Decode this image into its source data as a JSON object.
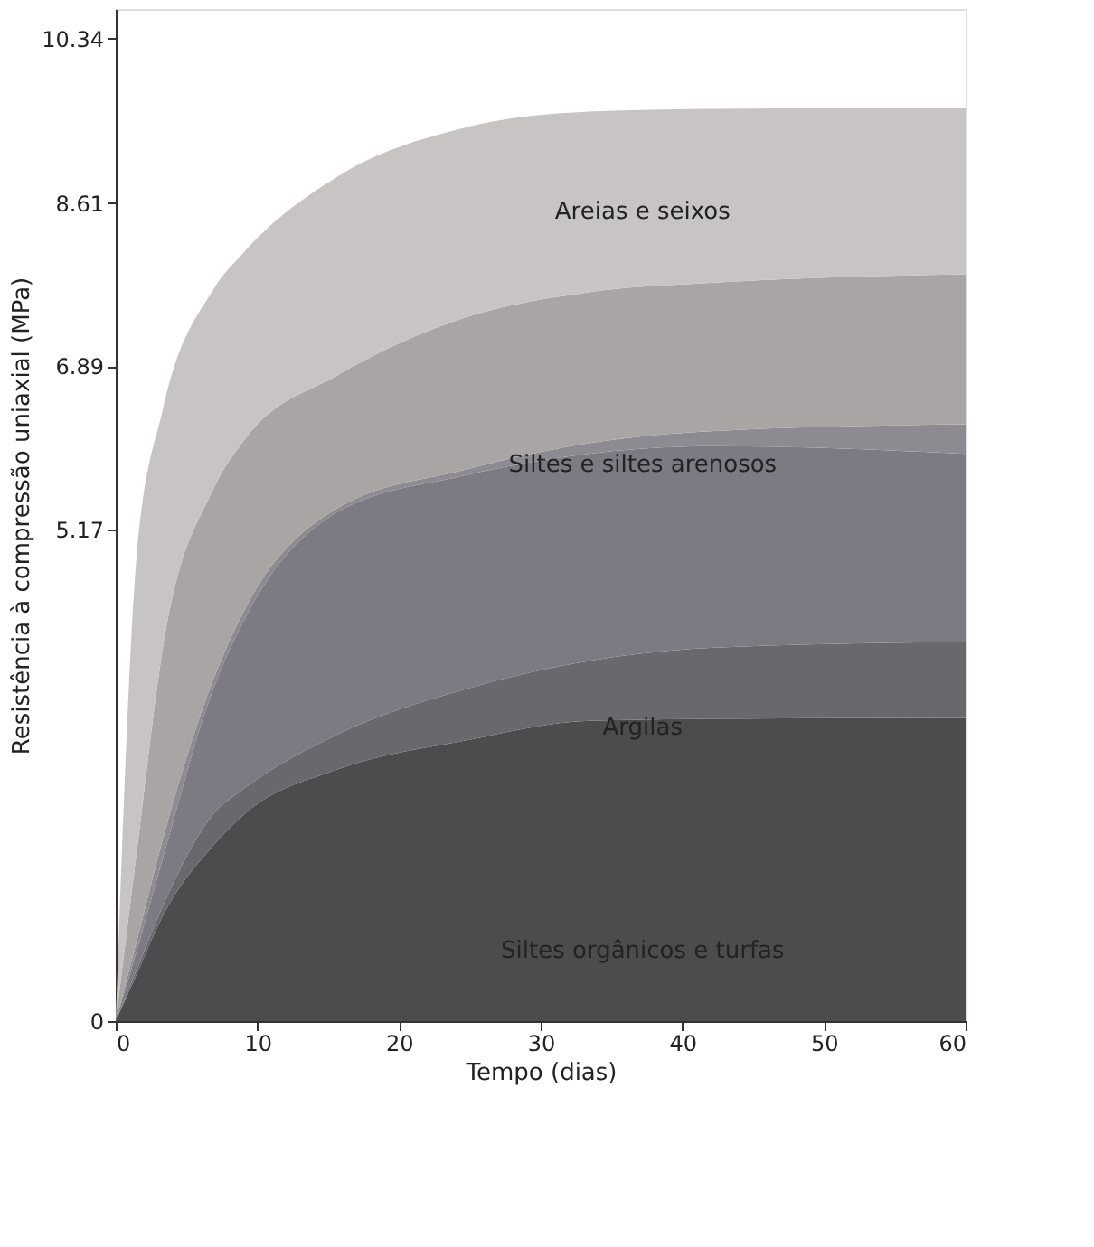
{
  "chart_data": {
    "type": "area",
    "stacked": true,
    "xlabel": "Tempo (dias)",
    "ylabel": "Resistência à compressão uniaxial (MPa)",
    "xlim": [
      0,
      60
    ],
    "xticks": [
      0,
      10,
      20,
      30,
      40,
      50,
      60
    ],
    "ylim": [
      0,
      10.65
    ],
    "yticks": [
      0,
      5.17,
      6.89,
      8.61,
      10.34
    ],
    "grid": false,
    "x": [
      0,
      1.5,
      3.3,
      6.9,
      9.1,
      15.7,
      24.6,
      33.4,
      42.3,
      60
    ],
    "series": [
      {
        "color": "#4e4b4f",
        "values": [
          0,
          0.5,
          1.1,
          1.85,
          2.18,
          2.65,
          2.95,
          3.16,
          3.18,
          3.19
        ]
      },
      {
        "color": "#6a676d",
        "values": [
          0,
          0.05,
          0.1,
          0.33,
          0.27,
          0.37,
          0.54,
          0.63,
          0.75,
          0.8
        ]
      },
      {
        "color": "#7d7a84",
        "values": [
          0,
          0.2,
          0.5,
          1.32,
          1.78,
          2.34,
          2.25,
          2.18,
          2.12,
          1.98
        ]
      },
      {
        "color": "#8e8a91",
        "values": [
          0,
          0.1,
          0.2,
          0.1,
          0.1,
          0.04,
          0.06,
          0.11,
          0.16,
          0.31
        ]
      },
      {
        "color": "#aaa5a5",
        "values": [
          0,
          0.95,
          2.0,
          2.0,
          1.79,
          1.4,
          1.6,
          1.59,
          1.56,
          1.58
        ]
      },
      {
        "color": "#c9c4c4",
        "values": [
          0,
          3.13,
          2.52,
          2.1,
          1.98,
          2.09,
          2.0,
          1.9,
          1.83,
          1.75
        ]
      }
    ],
    "annotations": [
      "Areias e seixos",
      "Siltes e siltes arenosos",
      "Argilas",
      "Siltes orgânicos e turfas"
    ]
  }
}
